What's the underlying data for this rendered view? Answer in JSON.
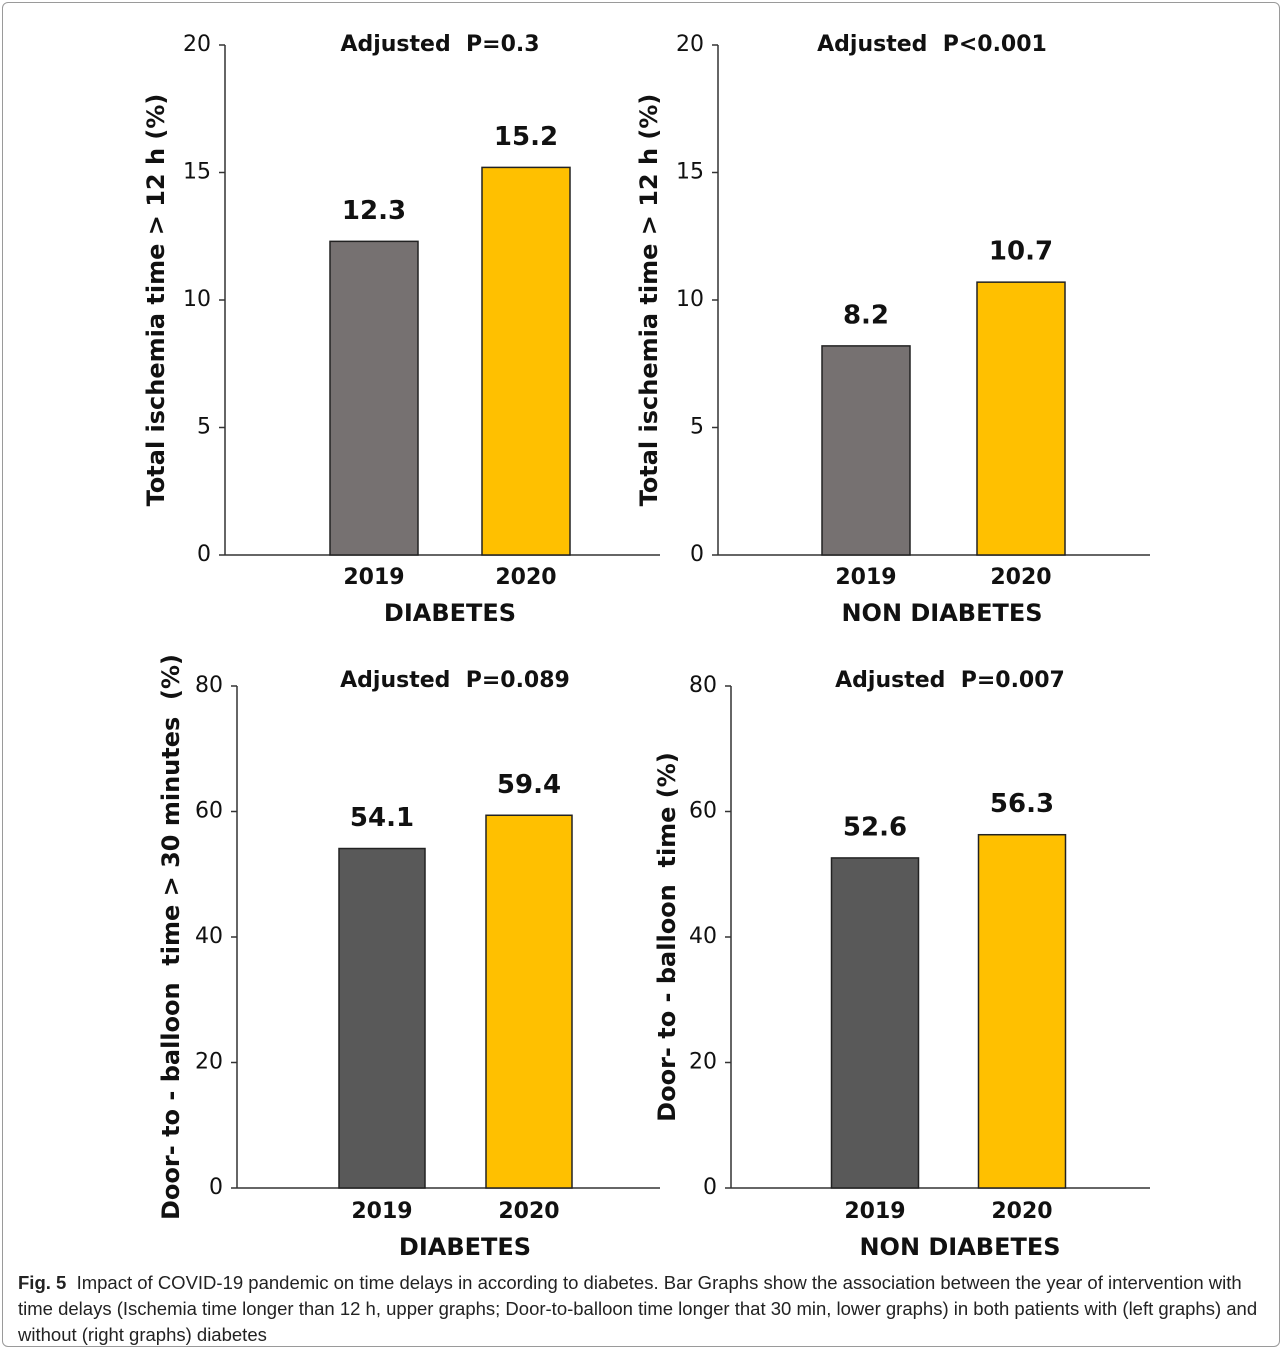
{
  "chart_data": [
    {
      "type": "bar",
      "title": "Adjusted  P=0.3",
      "y_label": "Total ischemia time > 12 h (%)",
      "x_label": "DIABETES",
      "categories": [
        "2019",
        "2020"
      ],
      "values": [
        12.3,
        15.2
      ],
      "colors": [
        "#767171",
        "#ffc000"
      ],
      "ylim": [
        0,
        20
      ],
      "yticks": [
        0,
        5,
        10,
        15,
        20
      ]
    },
    {
      "type": "bar",
      "title": "Adjusted  P<0.001",
      "y_label": "Total ischemia time > 12 h (%)",
      "x_label": "NON DIABETES",
      "categories": [
        "2019",
        "2020"
      ],
      "values": [
        8.2,
        10.7
      ],
      "colors": [
        "#767171",
        "#ffc000"
      ],
      "ylim": [
        0,
        20
      ],
      "yticks": [
        0,
        5,
        10,
        15,
        20
      ]
    },
    {
      "type": "bar",
      "title": "Adjusted  P=0.089",
      "y_label": "Door- to - balloon  time > 30 minutes  (%)",
      "x_label": "DIABETES",
      "categories": [
        "2019",
        "2020"
      ],
      "values": [
        54.1,
        59.4
      ],
      "colors": [
        "#595959",
        "#ffc000"
      ],
      "ylim": [
        0,
        80
      ],
      "yticks": [
        0,
        20,
        40,
        60,
        80
      ]
    },
    {
      "type": "bar",
      "title": "Adjusted  P=0.007",
      "y_label": "Door- to - balloon  time (%)",
      "x_label": "NON DIABETES",
      "categories": [
        "2019",
        "2020"
      ],
      "values": [
        52.6,
        56.3
      ],
      "colors": [
        "#595959",
        "#ffc000"
      ],
      "ylim": [
        0,
        80
      ],
      "yticks": [
        0,
        20,
        40,
        60,
        80
      ]
    }
  ],
  "caption": {
    "label": "Fig. 5",
    "text": "Impact of COVID-19 pandemic on time delays in according to diabetes. Bar Graphs show the association between the year of intervention with time delays (Ischemia time longer than 12 h, upper graphs; Door-to-balloon time longer that 30 min, lower graphs) in both patients with (left graphs) and without (right graphs) diabetes"
  }
}
